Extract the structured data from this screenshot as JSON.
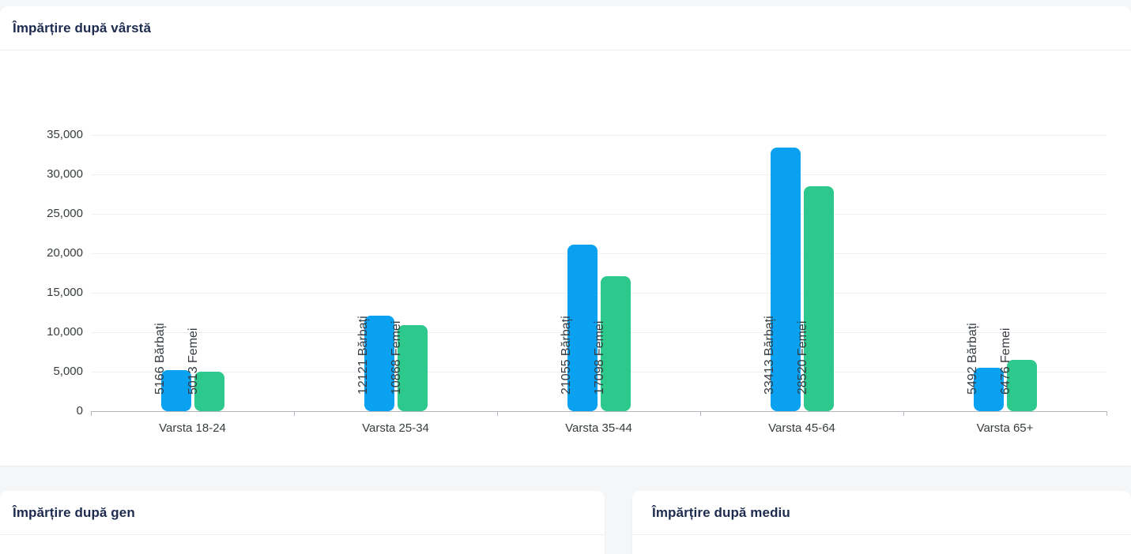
{
  "cards": {
    "age": {
      "title": "Împărțire după vârstă"
    },
    "gender": {
      "title": "Împărțire după gen"
    },
    "environment": {
      "title": "Împărțire după mediu"
    }
  },
  "chart_data": {
    "type": "bar",
    "title": "Împărțire după vârstă",
    "categories": [
      "Varsta 18-24",
      "Varsta 25-34",
      "Varsta 35-44",
      "Varsta 45-64",
      "Varsta 65+"
    ],
    "series": [
      {
        "name": "Bărbați",
        "color": "#0aa2f0",
        "values": [
          5166,
          12121,
          21055,
          33413,
          5492
        ],
        "labels": [
          "5166 Bărbați",
          "12121 Bărbați",
          "21055 Bărbați",
          "33413 Bărbați",
          "5492 Bărbați"
        ]
      },
      {
        "name": "Femei",
        "color": "#2dc98c",
        "values": [
          5013,
          10868,
          17098,
          28520,
          6476
        ],
        "labels": [
          "5013 Femei",
          "10868 Femei",
          "17098 Femei",
          "28520 Femei",
          "6476 Femei"
        ]
      }
    ],
    "ylim": [
      0,
      35000
    ],
    "ytick_step": 5000,
    "ytick_values": [
      0,
      5000,
      10000,
      15000,
      20000,
      25000,
      30000,
      35000
    ],
    "ytick_labels": [
      "0",
      "5,000",
      "10,000",
      "15,000",
      "20,000",
      "25,000",
      "30,000",
      "35,000"
    ],
    "grid": true,
    "legend": "none",
    "xlabel": "",
    "ylabel": ""
  }
}
